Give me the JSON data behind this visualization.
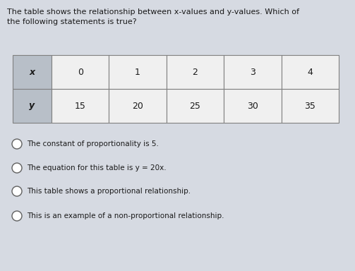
{
  "title_line1": "The table shows the relationship between x-values and y-values. Which of",
  "title_line2": "the following statements is true?",
  "title_fontsize": 8.0,
  "table": {
    "headers": [
      "x",
      "0",
      "1",
      "2",
      "3",
      "4"
    ],
    "row": [
      "y",
      "15",
      "20",
      "25",
      "30",
      "35"
    ],
    "header_bg": "#b8bfc8",
    "cell_bg": "#f0f0f0",
    "border_color": "#808080",
    "text_color": "#1a1a1a",
    "label_fontsize": 9,
    "data_fontsize": 9
  },
  "options": [
    "The constant of proportionality is 5.",
    "The equation for this table is y = 20x.",
    "This table shows a proportional relationship.",
    "This is an example of a non-proportional relationship."
  ],
  "option_fontsize": 7.5,
  "bg_color": "#d6dae2",
  "circle_color": "#ffffff",
  "circle_edge": "#606060"
}
